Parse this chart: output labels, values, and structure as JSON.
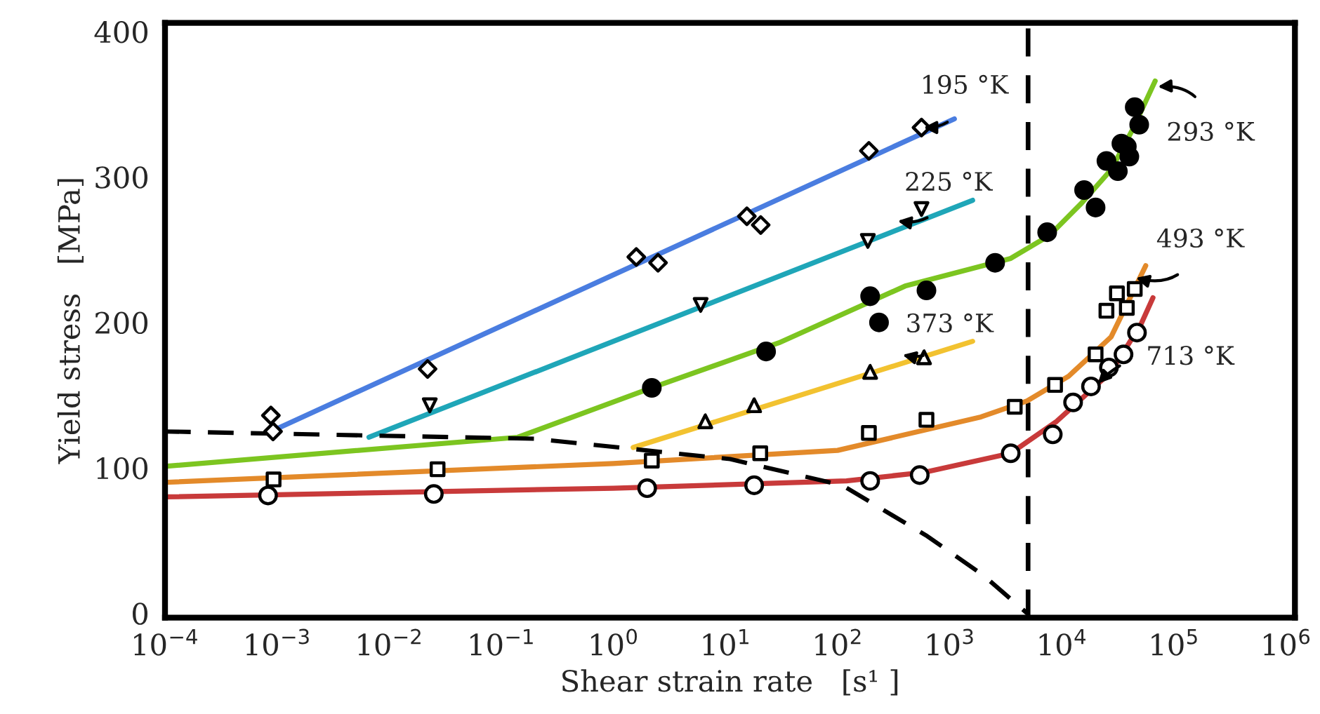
{
  "chart_data": {
    "type": "line",
    "xlabel": "Shear strain rate   [s¹ ]",
    "ylabel": "Yield stress   [MPa]",
    "log": "x",
    "grid": false,
    "legend": false,
    "xlim": [
      0.0001,
      1200000
    ],
    "xticks": [
      {
        "value": 0.0001,
        "label": "10$^{−4}$"
      },
      {
        "value": 0.001,
        "label": "10$^{−3}$"
      },
      {
        "value": 0.01,
        "label": "10$^{−2}$"
      },
      {
        "value": 0.1,
        "label": "10$^{−1}$"
      },
      {
        "value": 1,
        "label": "10$^{0}$"
      },
      {
        "value": 10,
        "label": "10$^{1}$"
      },
      {
        "value": 100,
        "label": "10$^{2}$"
      },
      {
        "value": 1000,
        "label": "10$^{3}$"
      },
      {
        "value": 10000,
        "label": "10$^{4}$"
      },
      {
        "value": 100000,
        "label": "10$^{5}$"
      },
      {
        "value": 1000000,
        "label": "10$^{6}$"
      }
    ],
    "ylim": [
      -3,
      406
    ],
    "yticks": [
      0,
      100,
      200,
      300,
      400
    ],
    "ref_lines": [
      {
        "axis": "x",
        "value": 5000,
        "color": "#000000",
        "line_style": "dashed"
      }
    ],
    "series": [
      {
        "color": "#4a7de0",
        "marker": "none",
        "x": [
          0.00088,
          1100
        ],
        "values": [
          125,
          340
        ]
      },
      {
        "color": "#1fa6b8",
        "marker": "none",
        "x": [
          0.0066,
          1600
        ],
        "values": [
          121,
          284
        ]
      },
      {
        "color": "#7cc520",
        "marker": "none",
        "x": [
          0.0001,
          0.14,
          2.2,
          30,
          400,
          3500,
          7800,
          15000,
          27500,
          43000,
          68000
        ],
        "values": [
          101,
          121,
          155,
          186,
          225,
          244,
          260,
          282,
          305,
          333,
          366
        ]
      },
      {
        "color": "#f2c230",
        "marker": "none",
        "x": [
          1.5,
          1600
        ],
        "values": [
          114,
          187
        ]
      },
      {
        "color": "#e38a2a",
        "marker": "none",
        "x": [
          0.0001,
          1,
          100,
          1900,
          4900,
          11500,
          27500,
          56000
        ],
        "values": [
          90,
          103,
          112,
          135,
          146,
          163,
          190,
          239
        ]
      },
      {
        "color": "#c83a3a",
        "marker": "none",
        "x": [
          0.0001,
          1,
          120,
          600,
          3500,
          9000,
          27500,
          51000,
          65000
        ],
        "values": [
          80,
          86,
          91,
          97,
          110,
          132,
          166,
          199,
          217
        ]
      },
      {
        "color": "#000000",
        "marker": "none",
        "line_style": "dashed",
        "x": [
          0.0001,
          0.2,
          11,
          110,
          630,
          2000,
          4900
        ],
        "values": [
          125,
          120,
          106,
          88,
          53,
          26,
          0
        ]
      },
      {
        "type": "scatter",
        "color": "#ffffff",
        "marker": "diamond",
        "x": [
          0.00088,
          0.00092,
          0.022,
          1.6,
          2.5,
          15.5,
          20.6,
          190,
          560
        ],
        "values": [
          136,
          125,
          168,
          245,
          241,
          273,
          267,
          318,
          334
        ]
      },
      {
        "type": "scatter",
        "color": "#ffffff",
        "marker": "triangle_down",
        "x": [
          0.023,
          6.0,
          186,
          560
        ],
        "values": [
          143,
          212,
          256,
          278
        ]
      },
      {
        "type": "scatter",
        "color": "#000000",
        "marker": "circle",
        "x": [
          2.2,
          23,
          195,
          234,
          620,
          2540,
          7400,
          15800,
          20000,
          25000,
          31600,
          34000,
          38000,
          40000,
          44700,
          49000
        ],
        "values": [
          155,
          180,
          218,
          200,
          222,
          241,
          262,
          291,
          279,
          311,
          304,
          323,
          321,
          314,
          348,
          336
        ]
      },
      {
        "type": "scatter",
        "color": "#ffffff",
        "marker": "triangle",
        "x": [
          6.6,
          18,
          195,
          590
        ],
        "values": [
          132,
          143,
          166,
          176
        ]
      },
      {
        "type": "scatter",
        "color": "#ffffff",
        "marker": "square",
        "x": [
          0.00093,
          0.027,
          2.2,
          20.4,
          190,
          620,
          3800,
          8700,
          20000,
          25000,
          31000,
          38000,
          44700
        ],
        "values": [
          92,
          99,
          105,
          110,
          124,
          133,
          142,
          157,
          178,
          208,
          220,
          210,
          223
        ]
      },
      {
        "type": "scatter",
        "color": "#ffffff",
        "marker": "circle",
        "x": [
          0.00083,
          0.025,
          2.0,
          18,
          195,
          540,
          3500,
          8300,
          12600,
          18200,
          26300,
          35500,
          46800
        ],
        "values": [
          81,
          82,
          86,
          88,
          91,
          95,
          110,
          123,
          145,
          156,
          169,
          178,
          193
        ]
      }
    ],
    "annotations": [
      {
        "text": "195 °K",
        "x": 560,
        "y": 334
      },
      {
        "text": "225 °K",
        "x": 330,
        "y": 270
      },
      {
        "text": "293 °K",
        "x": 69000,
        "y": 362
      },
      {
        "text": "373 °K",
        "x": 365,
        "y": 178
      },
      {
        "text": "493 °K",
        "x": 44000,
        "y": 231
      },
      {
        "text": "713 °K",
        "x": 20400,
        "y": 157
      }
    ]
  }
}
